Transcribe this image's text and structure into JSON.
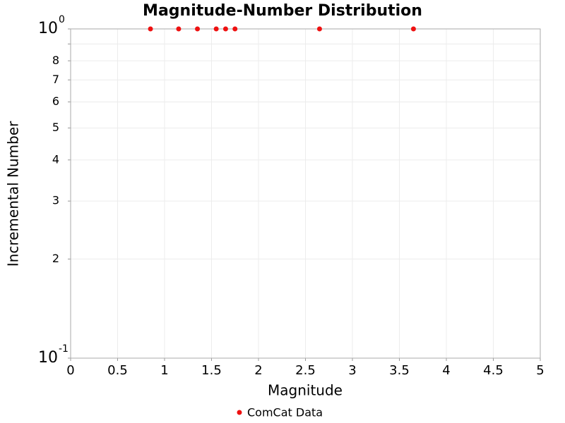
{
  "chart_data": {
    "type": "scatter",
    "title": "Magnitude-Number Distribution",
    "x_label": "Magnitude",
    "y_label": "Incremental Number",
    "series": [
      {
        "name": "ComCat Data",
        "color": "#ee1111",
        "x": [
          0.85,
          1.15,
          1.35,
          1.55,
          1.65,
          1.75,
          2.65,
          3.65
        ],
        "values": [
          1,
          1,
          1,
          1,
          1,
          1,
          1,
          1
        ]
      }
    ],
    "xlim": [
      0,
      5
    ],
    "xticks": [
      0,
      0.5,
      1,
      1.5,
      2,
      2.5,
      3,
      3.5,
      4,
      4.5,
      5
    ],
    "ylim": [
      0.1,
      1
    ],
    "log_y": true,
    "yticks": [
      {
        "value": 0.1,
        "label": "10",
        "exponent": "-1"
      },
      {
        "value": 0.2,
        "label": "2"
      },
      {
        "value": 0.3,
        "label": "3"
      },
      {
        "value": 0.4,
        "label": "4"
      },
      {
        "value": 0.5,
        "label": "5"
      },
      {
        "value": 0.6,
        "label": "6"
      },
      {
        "value": 0.7,
        "label": "7"
      },
      {
        "value": 0.8,
        "label": "8"
      },
      {
        "value": 0.9,
        "label": null
      },
      {
        "value": 1,
        "label": "10",
        "exponent": "0"
      }
    ],
    "grid": true,
    "legend": "bottom"
  }
}
